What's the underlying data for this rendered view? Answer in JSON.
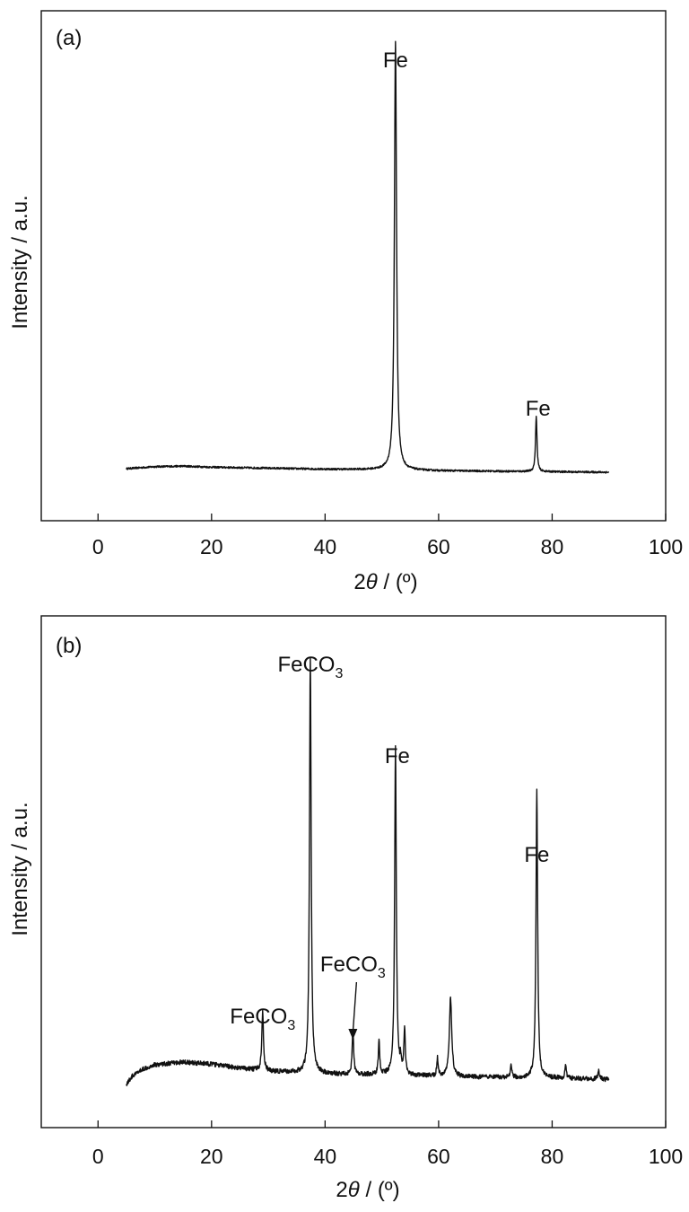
{
  "chart_data": [
    {
      "type": "line",
      "panel": "(a)",
      "xlabel": "2θ / (º)",
      "ylabel": "Intensity / a.u.",
      "xlim": [
        -10,
        100
      ],
      "ylim": [
        0,
        100
      ],
      "xticks": [
        0,
        20,
        40,
        60,
        80,
        100
      ],
      "yticks_shown": false,
      "grid": false,
      "series": [
        {
          "baseline": [
            [
              5,
              10.2
            ],
            [
              10,
              10.6
            ],
            [
              15,
              10.7
            ],
            [
              20,
              10.5
            ],
            [
              30,
              10.3
            ],
            [
              40,
              10.1
            ],
            [
              50,
              10.0
            ],
            [
              60,
              9.8
            ],
            [
              70,
              9.7
            ],
            [
              80,
              9.6
            ],
            [
              90,
              9.5
            ]
          ],
          "peaks": [
            {
              "x": 52.4,
              "height": 84.0,
              "width": 0.45
            },
            {
              "x": 77.2,
              "height": 10.8,
              "width": 0.32
            }
          ]
        }
      ],
      "annotations": [
        {
          "text": "Fe",
          "x": 52.4
        },
        {
          "text": "Fe",
          "x": 77.2
        }
      ]
    },
    {
      "type": "line",
      "panel": "(b)",
      "xlabel": "2θ / (º)",
      "ylabel": "Intensity / a.u.",
      "xlim": [
        -10,
        100
      ],
      "ylim": [
        0,
        100
      ],
      "xticks": [
        0,
        20,
        40,
        60,
        80,
        100
      ],
      "yticks_shown": false,
      "grid": false,
      "series": [
        {
          "baseline": [
            [
              5,
              8.5
            ],
            [
              6,
              10.0
            ],
            [
              8,
              11.5
            ],
            [
              10,
              12.3
            ],
            [
              15,
              12.8
            ],
            [
              20,
              12.4
            ],
            [
              25,
              11.6
            ],
            [
              30,
              11.0
            ],
            [
              40,
              10.5
            ],
            [
              50,
              10.3
            ],
            [
              60,
              10.0
            ],
            [
              70,
              9.8
            ],
            [
              80,
              9.7
            ],
            [
              90,
              9.4
            ]
          ],
          "peaks": [
            {
              "x": 29.0,
              "height": 11.5,
              "width": 0.35
            },
            {
              "x": 37.4,
              "height": 81.5,
              "width": 0.35
            },
            {
              "x": 44.9,
              "height": 9.0,
              "width": 0.3
            },
            {
              "x": 49.5,
              "height": 6.5,
              "width": 0.3
            },
            {
              "x": 52.4,
              "height": 64.0,
              "width": 0.35
            },
            {
              "x": 53.3,
              "height": 2.5,
              "width": 0.25
            },
            {
              "x": 54.0,
              "height": 8.8,
              "width": 0.3
            },
            {
              "x": 59.8,
              "height": 3.5,
              "width": 0.3
            },
            {
              "x": 62.1,
              "height": 15.5,
              "width": 0.5
            },
            {
              "x": 72.8,
              "height": 2.5,
              "width": 0.3
            },
            {
              "x": 77.3,
              "height": 56.0,
              "width": 0.35
            },
            {
              "x": 82.4,
              "height": 2.5,
              "width": 0.3
            },
            {
              "x": 88.2,
              "height": 1.5,
              "width": 0.4
            }
          ]
        }
      ],
      "annotations": [
        {
          "text": "FeCO",
          "subscript": "3",
          "x": 37.4
        },
        {
          "text": "Fe",
          "x": 52.4
        },
        {
          "text": "Fe",
          "x": 77.3
        },
        {
          "text": "FeCO",
          "subscript": "3",
          "x": 29.0
        },
        {
          "text": "FeCO",
          "subscript": "3",
          "x": 44.9,
          "arrow": true
        }
      ]
    }
  ]
}
